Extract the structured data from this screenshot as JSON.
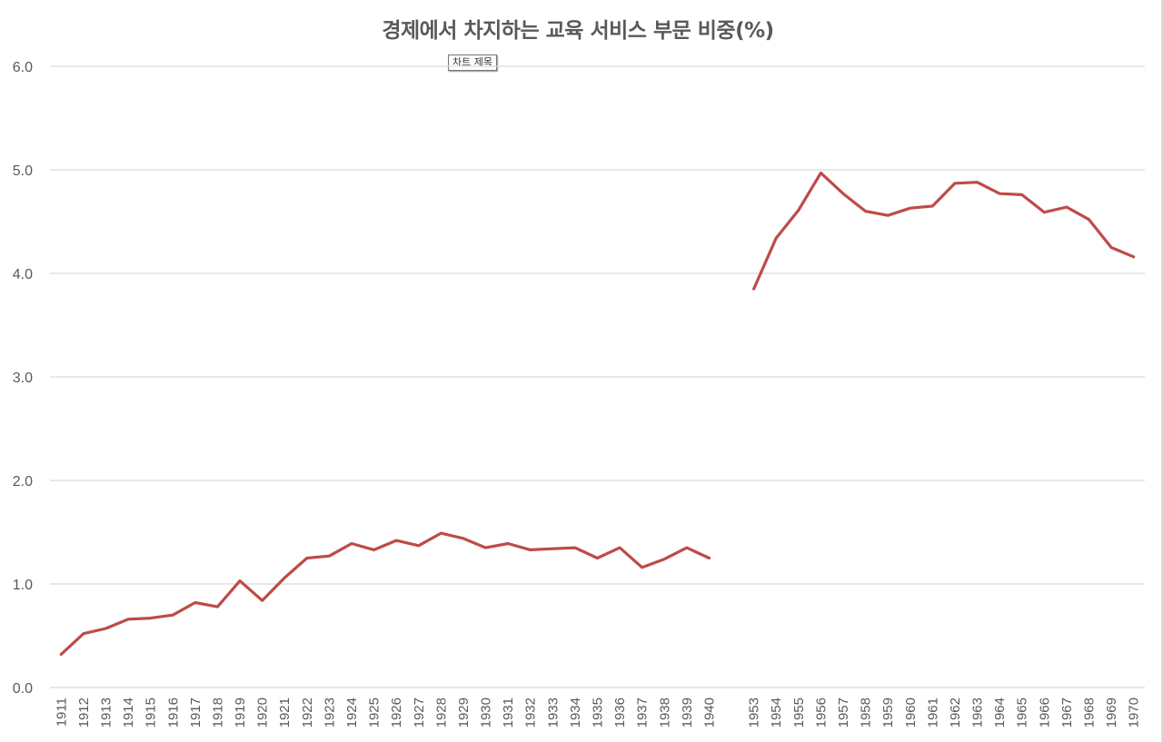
{
  "chart": {
    "title": "경제에서 차지하는 교육 서비스 부문 비중(%)",
    "tooltip": "차트 제목",
    "line_color": "#BE4B48",
    "grid_color": "#D9D9D9",
    "axis_text_color": "#595959"
  },
  "chart_data": {
    "type": "line",
    "title": "경제에서 차지하는 교육 서비스 부문 비중(%)",
    "xlabel": "",
    "ylabel": "",
    "ylim": [
      0,
      6
    ],
    "yticks": [
      "0.0",
      "1.0",
      "2.0",
      "3.0",
      "4.0",
      "5.0",
      "6.0"
    ],
    "grid": true,
    "legend": null,
    "categories": [
      "1911",
      "1912",
      "1913",
      "1914",
      "1915",
      "1916",
      "1917",
      "1918",
      "1919",
      "1920",
      "1921",
      "1922",
      "1923",
      "1924",
      "1925",
      "1926",
      "1927",
      "1928",
      "1929",
      "1930",
      "1931",
      "1932",
      "1933",
      "1934",
      "1935",
      "1936",
      "1937",
      "1938",
      "1939",
      "1940",
      "",
      "1953",
      "1954",
      "1955",
      "1956",
      "1957",
      "1958",
      "1959",
      "1960",
      "1961",
      "1962",
      "1963",
      "1964",
      "1965",
      "1966",
      "1967",
      "1968",
      "1969",
      "1970"
    ],
    "series": [
      {
        "name": "교육 서비스 부문 비중(%)",
        "values": [
          0.32,
          0.52,
          0.57,
          0.66,
          0.67,
          0.7,
          0.82,
          0.78,
          1.03,
          0.84,
          1.06,
          1.25,
          1.27,
          1.39,
          1.33,
          1.42,
          1.37,
          1.49,
          1.44,
          1.35,
          1.39,
          1.33,
          1.34,
          1.35,
          1.25,
          1.35,
          1.16,
          1.24,
          1.35,
          1.25,
          null,
          3.85,
          4.34,
          4.61,
          4.97,
          4.77,
          4.6,
          4.56,
          4.63,
          4.65,
          4.87,
          4.88,
          4.77,
          4.76,
          4.59,
          4.64,
          4.52,
          4.25,
          4.16
        ]
      }
    ]
  }
}
